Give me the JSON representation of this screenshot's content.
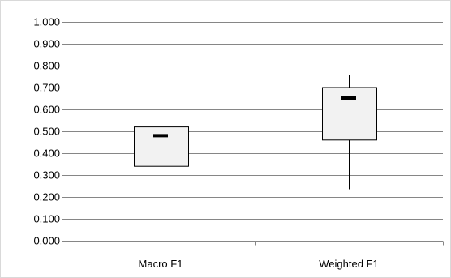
{
  "chart_data": {
    "type": "box",
    "title": "",
    "xlabel": "",
    "ylabel": "",
    "categories": [
      "Macro F1",
      "Weighted F1"
    ],
    "ylim": [
      0,
      1
    ],
    "yticks": [
      "0.000",
      "0.100",
      "0.200",
      "0.300",
      "0.400",
      "0.500",
      "0.600",
      "0.700",
      "0.800",
      "0.900",
      "1.000"
    ],
    "grid": true,
    "boxes": [
      {
        "category": "Macro F1",
        "min": 0.19,
        "q1": 0.34,
        "median": 0.48,
        "q3": 0.52,
        "max": 0.575
      },
      {
        "category": "Weighted F1",
        "min": 0.235,
        "q1": 0.46,
        "median": 0.652,
        "q3": 0.7,
        "max": 0.758
      }
    ],
    "colors": {
      "box_fill": "#f2f2f2",
      "box_stroke": "#000000",
      "gridline": "#868686",
      "axis": "#868686"
    }
  }
}
